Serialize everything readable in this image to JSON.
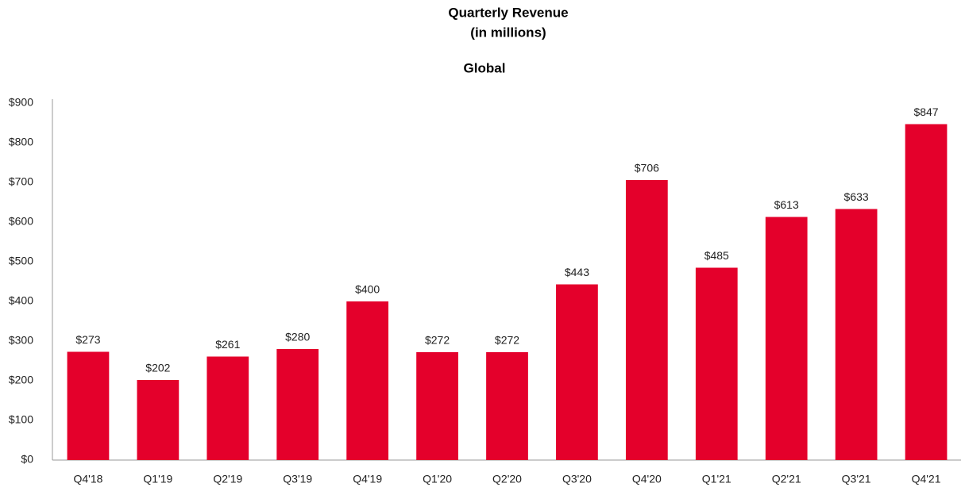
{
  "chart_data": {
    "type": "bar",
    "title": [
      "Quarterly Revenue",
      "(in millions)"
    ],
    "subtitle": "Global",
    "categories": [
      "Q4'18",
      "Q1'19",
      "Q2'19",
      "Q3'19",
      "Q4'19",
      "Q1'20",
      "Q2'20",
      "Q3'20",
      "Q4'20",
      "Q1'21",
      "Q2'21",
      "Q3'21",
      "Q4'21"
    ],
    "values": [
      273,
      202,
      261,
      280,
      400,
      272,
      272,
      443,
      706,
      485,
      613,
      633,
      847
    ],
    "value_labels": [
      "$273",
      "$202",
      "$261",
      "$280",
      "$400",
      "$272",
      "$272",
      "$443",
      "$706",
      "$485",
      "$613",
      "$633",
      "$847"
    ],
    "color": "#e4002b",
    "ylim": [
      0,
      900
    ],
    "yticks": [
      {
        "value": 0,
        "label": "$0"
      },
      {
        "value": 100,
        "label": "$100"
      },
      {
        "value": 200,
        "label": "$200"
      },
      {
        "value": 300,
        "label": "$300"
      },
      {
        "value": 400,
        "label": "$400"
      },
      {
        "value": 500,
        "label": "$500"
      },
      {
        "value": 600,
        "label": "$600"
      },
      {
        "value": 700,
        "label": "$700"
      },
      {
        "value": 800,
        "label": "$800"
      },
      {
        "value": 900,
        "label": "$900"
      }
    ],
    "grid": false
  }
}
